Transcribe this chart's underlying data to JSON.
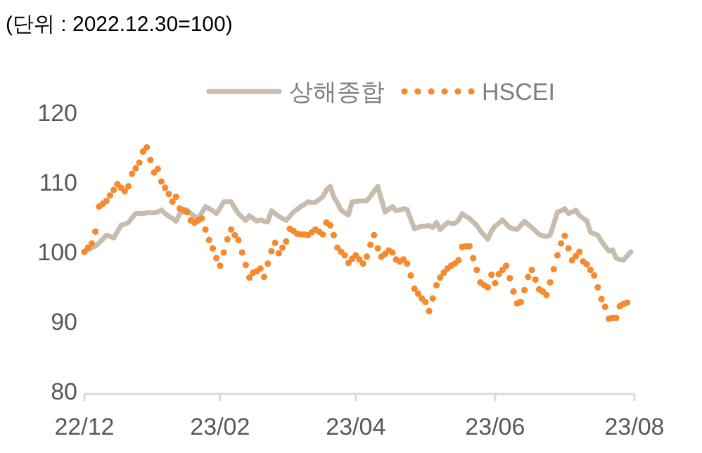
{
  "chart_data": {
    "type": "line",
    "title": "(단위 : 2022.12.30=100)",
    "categories": [
      "22/12",
      null,
      null,
      null,
      null,
      null,
      null,
      null,
      null,
      null,
      null,
      null,
      null,
      null,
      null,
      null,
      null,
      null,
      null,
      null,
      null,
      null,
      null,
      null,
      null,
      null,
      null,
      null,
      null,
      null,
      null,
      null,
      null,
      null,
      null,
      null,
      null,
      "23/02",
      null,
      null,
      null,
      null,
      null,
      null,
      null,
      null,
      null,
      null,
      null,
      null,
      null,
      null,
      null,
      null,
      null,
      null,
      null,
      null,
      null,
      null,
      null,
      null,
      null,
      null,
      null,
      null,
      null,
      null,
      null,
      null,
      null,
      null,
      null,
      null,
      "23/04",
      null,
      null,
      null,
      null,
      null,
      null,
      null,
      null,
      null,
      null,
      null,
      null,
      null,
      null,
      null,
      null,
      null,
      null,
      null,
      null,
      null,
      null,
      null,
      null,
      null,
      null,
      null,
      null,
      null,
      null,
      null,
      null,
      null,
      null,
      null,
      null,
      null,
      "23/06",
      null,
      null,
      null,
      null,
      null,
      null,
      null,
      null,
      null,
      null,
      null,
      null,
      null,
      null,
      null,
      null,
      null,
      null,
      null,
      null,
      null,
      null,
      null,
      null,
      null,
      null,
      null,
      null,
      null,
      null,
      null,
      null,
      null,
      null,
      null,
      null,
      null,
      "23/08"
    ],
    "ylim": [
      80,
      120
    ],
    "yticks": [
      80,
      90,
      100,
      110,
      120
    ],
    "legend": "top",
    "series": [
      {
        "name": "상해종합",
        "line_style": "solid",
        "color": "#c8bcae",
        "values": [
          100,
          100.3,
          100.6,
          100.8,
          101.3,
          101.8,
          102.4,
          102.2,
          102.0,
          102.9,
          103.8,
          104.0,
          104.2,
          104.9,
          105.5,
          105.5,
          105.5,
          105.6,
          105.6,
          105.6,
          105.7,
          106.0,
          105.5,
          105.1,
          104.8,
          104.4,
          105.5,
          105.7,
          106.0,
          105.5,
          105.1,
          104.8,
          105.6,
          106.5,
          106.2,
          105.9,
          105.5,
          106.3,
          107.2,
          107.2,
          107.2,
          106.3,
          105.5,
          105.0,
          104.5,
          105.2,
          104.8,
          104.4,
          104.6,
          104.4,
          104.3,
          105.9,
          105.5,
          105.1,
          104.8,
          104.5,
          105.1,
          105.7,
          106.1,
          106.5,
          106.8,
          107.2,
          107.1,
          107.1,
          107.5,
          107.9,
          108.9,
          109.4,
          107.9,
          107.0,
          106.0,
          105.6,
          105.3,
          107.2,
          107.2,
          107.3,
          107.3,
          107.3,
          108.0,
          108.7,
          109.4,
          107.5,
          105.7,
          106.1,
          106.5,
          105.9,
          106.0,
          106.2,
          106.1,
          104.7,
          103.3,
          103.5,
          103.7,
          103.7,
          103.8,
          103.5,
          104.2,
          103.2,
          103.7,
          104.2,
          104.1,
          104.1,
          104.5,
          105.5,
          105.1,
          104.8,
          104.3,
          103.8,
          103.0,
          102.4,
          101.8,
          103.0,
          103.7,
          104.1,
          104.6,
          104.0,
          103.5,
          103.3,
          103.2,
          103.8,
          104.4,
          103.9,
          103.5,
          103.0,
          102.5,
          102.3,
          102.2,
          102.4,
          104.0,
          105.7,
          105.9,
          106.2,
          105.5,
          105.7,
          106.0,
          105.2,
          104.8,
          104.5,
          102.8,
          102.6,
          102.4,
          101.5,
          100.8,
          100.1,
          100.3,
          99.1,
          98.9,
          98.8,
          99.4,
          100.0,
          null
        ]
      },
      {
        "name": "HSCEI",
        "type": "scatter",
        "marker": "circle",
        "color": "#f58a2f",
        "values": [
          100.0,
          100.6,
          101.2,
          102.9,
          106.5,
          106.9,
          107.3,
          108.1,
          108.9,
          109.7,
          109.2,
          108.7,
          109.4,
          111.2,
          112.0,
          112.8,
          114.4,
          115.0,
          113.2,
          111.4,
          111.9,
          110.1,
          109.2,
          108.3,
          107.2,
          107.9,
          106.2,
          106.0,
          105.7,
          104.5,
          104.2,
          104.5,
          104.8,
          103.2,
          101.7,
          100.5,
          99.1,
          98.0,
          99.9,
          101.8,
          103.2,
          102.4,
          101.7,
          99.9,
          98.1,
          96.3,
          97.0,
          97.2,
          97.6,
          96.4,
          98.3,
          100.1,
          101.3,
          99.8,
          100.6,
          101.5,
          103.3,
          103.0,
          102.6,
          102.5,
          102.5,
          102.4,
          102.8,
          103.2,
          102.9,
          102.5,
          104.2,
          103.8,
          102.4,
          100.6,
          100.0,
          99.5,
          98.4,
          99.0,
          99.5,
          98.9,
          98.3,
          99.3,
          101.0,
          102.4,
          100.5,
          99.3,
          99.7,
          100.2,
          99.9,
          98.9,
          98.6,
          98.9,
          98.3,
          96.6,
          94.7,
          94.0,
          93.3,
          92.8,
          91.5,
          93.3,
          95.2,
          96.3,
          97.0,
          97.6,
          98.0,
          98.3,
          98.8,
          100.7,
          100.8,
          100.8,
          99.1,
          97.4,
          95.6,
          95.2,
          94.9,
          96.7,
          95.5,
          96.8,
          97.4,
          98.0,
          96.2,
          94.3,
          92.6,
          92.8,
          94.5,
          96.4,
          97.4,
          96.0,
          94.6,
          94.3,
          93.8,
          95.6,
          97.5,
          99.5,
          101.2,
          102.3,
          100.5,
          98.8,
          99.4,
          100.0,
          98.6,
          98.2,
          97.4,
          96.6,
          94.9,
          93.2,
          92.1,
          90.4,
          90.5,
          90.5,
          92.2,
          92.5,
          92.7,
          null,
          null
        ]
      }
    ]
  }
}
